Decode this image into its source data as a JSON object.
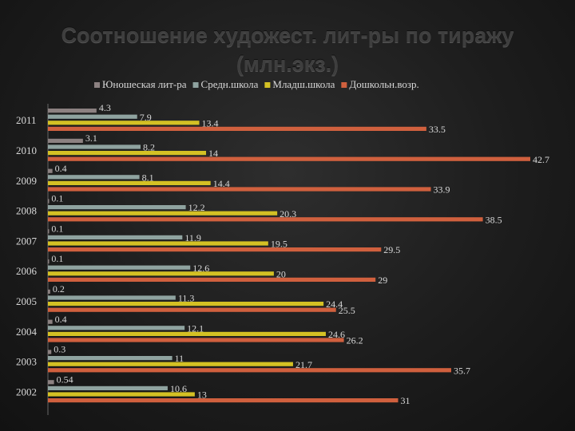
{
  "title_lines": [
    "Соотношение художест. лит-ры по тиражу",
    "(млн.экз.)"
  ],
  "chart_data": {
    "type": "bar",
    "orientation": "horizontal",
    "title": "Соотношение художест. лит-ры по тиражу (млн.экз.)",
    "categories": [
      "2011",
      "2010",
      "2009",
      "2008",
      "2007",
      "2006",
      "2005",
      "2004",
      "2003",
      "2002"
    ],
    "series": [
      {
        "name": "Юношеская лит-ра",
        "color": "#8c8181",
        "values": [
          4.3,
          3.1,
          0.4,
          0.1,
          0.1,
          0.1,
          0.2,
          0.4,
          0.3,
          0.54
        ]
      },
      {
        "name": "Средн.школа",
        "color": "#8fa3a0",
        "values": [
          7.9,
          8.2,
          8.1,
          12.2,
          11.9,
          12.6,
          11.3,
          12.1,
          11,
          10.6
        ]
      },
      {
        "name": "Младш.школа",
        "color": "#d4c124",
        "values": [
          13.4,
          14,
          14.4,
          20.3,
          19.5,
          20,
          24.4,
          24.6,
          21.7,
          13
        ]
      },
      {
        "name": "Дошкольн.возр.",
        "color": "#d0603e",
        "values": [
          33.5,
          42.7,
          33.9,
          38.5,
          29.5,
          29,
          25.5,
          26.2,
          35.7,
          31
        ]
      }
    ],
    "value_labels": [
      [
        "4.3",
        "7.9",
        "13.4",
        "33.5"
      ],
      [
        "3.1",
        "8.2",
        "14",
        "42.7"
      ],
      [
        "0.4",
        "8.1",
        "14.4",
        "33.9"
      ],
      [
        "0.1",
        "12.2",
        "20.3",
        "38.5"
      ],
      [
        "0.1",
        "11.9",
        "19.5",
        "29.5"
      ],
      [
        "0.1",
        "12.6",
        "20",
        "29"
      ],
      [
        "0.2",
        "11.3",
        "24.4",
        "25.5"
      ],
      [
        "0.4",
        "12.1",
        "24.6",
        "26.2"
      ],
      [
        "0.3",
        "11",
        "21.7",
        "35.7"
      ],
      [
        "0.54",
        "10.6",
        "13",
        "31"
      ]
    ],
    "xlim": [
      0,
      43
    ],
    "legend_position": "top"
  }
}
